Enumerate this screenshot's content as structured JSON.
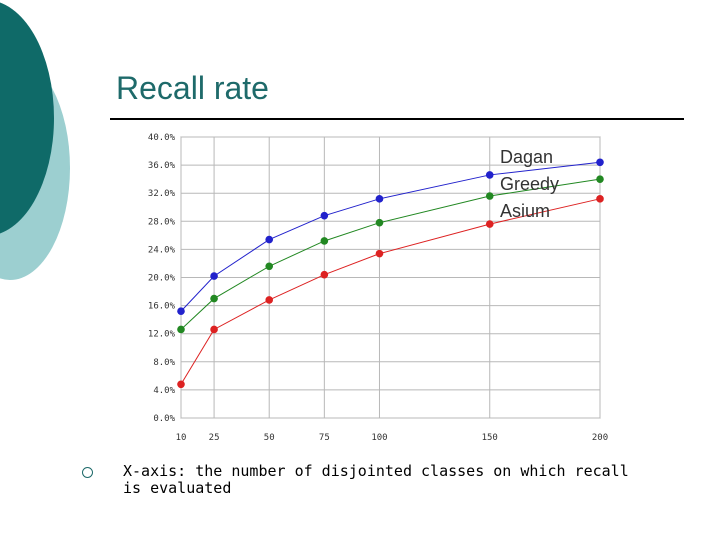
{
  "slide": {
    "title": "Recall rate",
    "bullet": "X-axis: the number of disjointed classes on which recall is evaluated"
  },
  "chart_data": {
    "type": "line",
    "x": [
      10,
      25,
      50,
      75,
      100,
      150,
      200
    ],
    "x_tick_labels": [
      "10",
      "25",
      "50",
      "75",
      "100",
      "150",
      "200"
    ],
    "y_tick_labels": [
      "0.0%",
      "4.0%",
      "8.0%",
      "12.0%",
      "16.0%",
      "20.0%",
      "24.0%",
      "28.0%",
      "32.0%",
      "36.0%",
      "40.0%"
    ],
    "ylim": [
      0,
      40
    ],
    "grid": true,
    "legend_position": "top-right",
    "series": [
      {
        "name": "Dagan",
        "color": "#2222cc",
        "values": [
          15.2,
          20.2,
          25.4,
          28.8,
          31.2,
          34.6,
          36.4
        ]
      },
      {
        "name": "Greedy",
        "color": "#228822",
        "values": [
          12.6,
          17.0,
          21.6,
          25.2,
          27.8,
          31.6,
          34.0
        ]
      },
      {
        "name": "Asium",
        "color": "#dd2222",
        "values": [
          4.8,
          12.6,
          16.8,
          20.4,
          23.4,
          27.6,
          31.2
        ]
      }
    ]
  }
}
